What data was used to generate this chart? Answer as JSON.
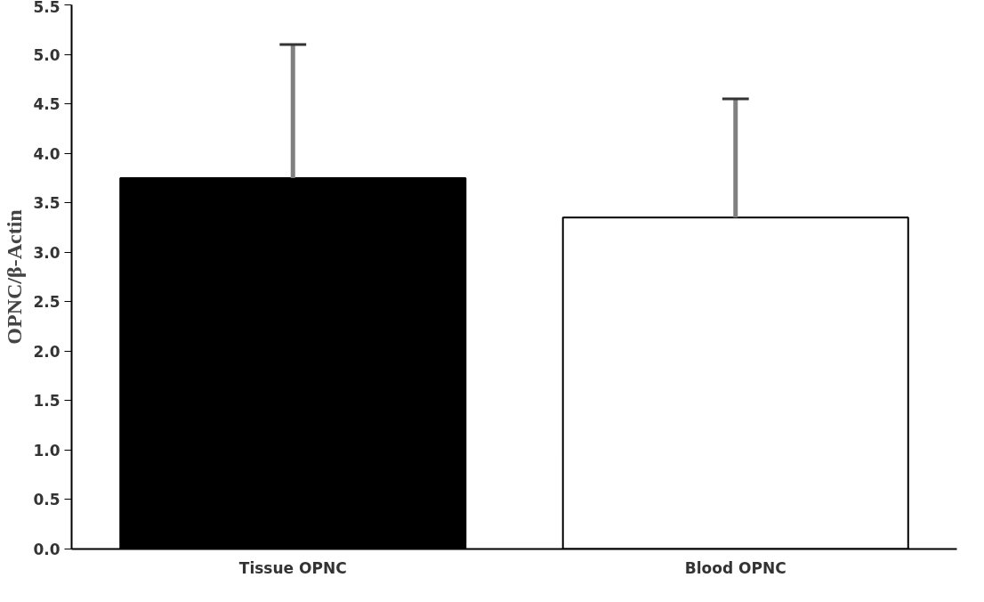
{
  "chart_data": {
    "type": "bar",
    "ylabel": "OPNC/β-Actin",
    "categories": [
      "Tissue OPNC",
      "Blood OPNC"
    ],
    "values": [
      3.75,
      3.35
    ],
    "colors": [
      "#000000",
      "#ffffff"
    ],
    "errors": [
      [
        3.75,
        5.1
      ],
      [
        3.35,
        4.55
      ]
    ],
    "ylim": [
      0,
      5.5
    ],
    "yticks": [
      {
        "value": 0,
        "label": "0.0"
      },
      0.5,
      {
        "value": 1,
        "label": "1.0"
      },
      1.5,
      {
        "value": 2,
        "label": "2.0"
      },
      2.5,
      {
        "value": 3,
        "label": "3.0"
      },
      3.5,
      {
        "value": 4,
        "label": "4.0"
      },
      4.5,
      {
        "value": 5,
        "label": "5.0"
      },
      5.5
    ],
    "grid": false
  }
}
